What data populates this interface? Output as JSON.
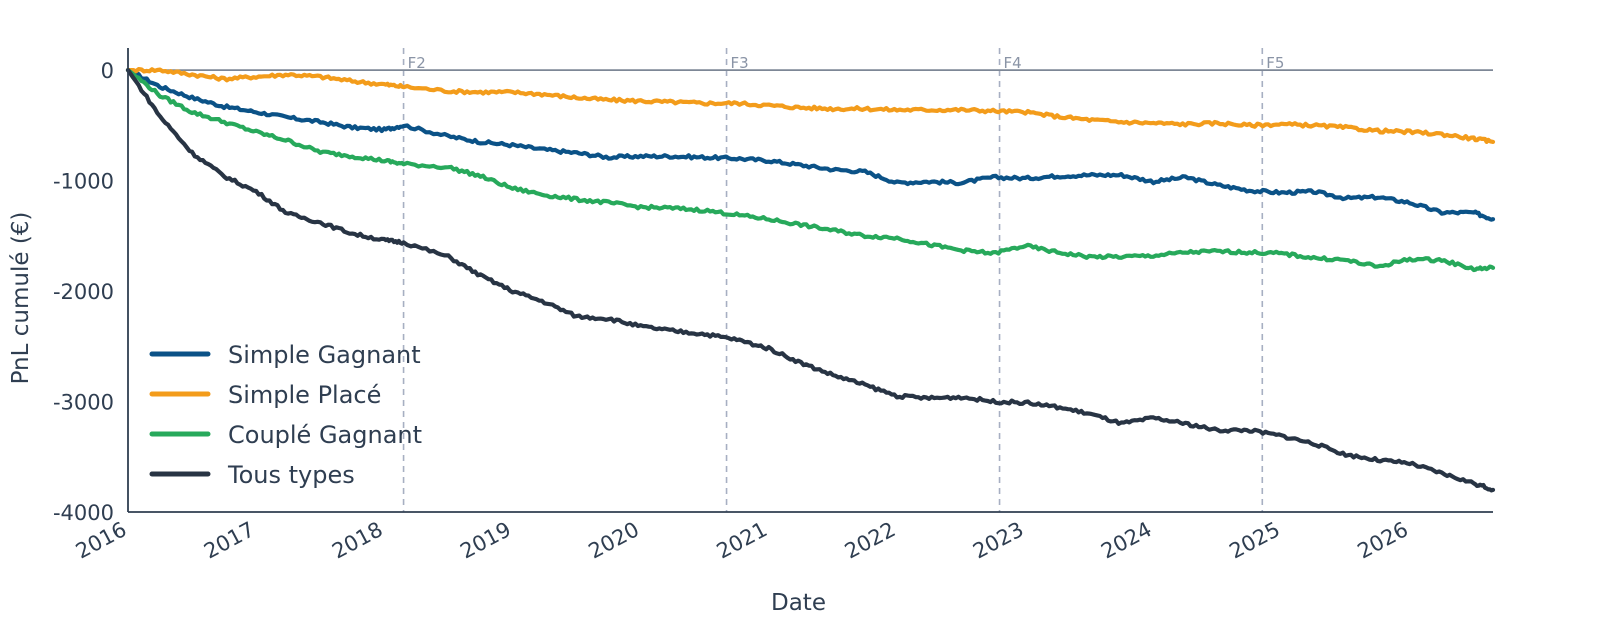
{
  "chart_data": {
    "type": "line",
    "title": "",
    "xlabel": "Date",
    "ylabel": "PnL cumulé (€)",
    "xlim": [
      2016.0,
      2026.65
    ],
    "ylim": [
      -4000,
      200
    ],
    "x_ticks": [
      "2016",
      "2017",
      "2018",
      "2019",
      "2020",
      "2021",
      "2022",
      "2023",
      "2024",
      "2025",
      "2026"
    ],
    "y_ticks": [
      0,
      -1000,
      -2000,
      -3000,
      -4000
    ],
    "y_tick_labels": [
      "0",
      "-1000",
      "-2000",
      "-3000",
      "-4000"
    ],
    "grid": false,
    "zero_line": true,
    "legend": "bottom-left",
    "vlines": [
      {
        "x": 2018.15,
        "label": "F2"
      },
      {
        "x": 2020.67,
        "label": "F3"
      },
      {
        "x": 2022.8,
        "label": "F4"
      },
      {
        "x": 2024.85,
        "label": "F5"
      }
    ],
    "x": [
      2016.0,
      2016.25,
      2016.5,
      2016.75,
      2017.0,
      2017.25,
      2017.5,
      2017.75,
      2018.0,
      2018.15,
      2018.5,
      2018.75,
      2019.0,
      2019.25,
      2019.5,
      2019.75,
      2020.0,
      2020.25,
      2020.5,
      2020.75,
      2021.0,
      2021.25,
      2021.5,
      2021.75,
      2022.0,
      2022.25,
      2022.5,
      2022.75,
      2023.0,
      2023.25,
      2023.5,
      2023.75,
      2024.0,
      2024.25,
      2024.5,
      2024.75,
      2025.0,
      2025.25,
      2025.5,
      2025.75,
      2026.0,
      2026.25,
      2026.5,
      2026.65
    ],
    "series": [
      {
        "name": "Simple Gagnant",
        "color": "#0b5287",
        "values": [
          0,
          -150,
          -250,
          -330,
          -380,
          -430,
          -470,
          -520,
          -540,
          -500,
          -600,
          -650,
          -680,
          -720,
          -750,
          -790,
          -780,
          -780,
          -790,
          -800,
          -820,
          -860,
          -900,
          -920,
          -1020,
          -1010,
          -1020,
          -970,
          -980,
          -960,
          -950,
          -950,
          -1010,
          -970,
          -1040,
          -1090,
          -1110,
          -1100,
          -1160,
          -1150,
          -1200,
          -1290,
          -1290,
          -1350
        ]
      },
      {
        "name": "Simple Placé",
        "color": "#f39c1b",
        "values": [
          0,
          0,
          -40,
          -80,
          -60,
          -40,
          -60,
          -100,
          -130,
          -150,
          -190,
          -200,
          -200,
          -220,
          -250,
          -270,
          -280,
          -290,
          -300,
          -300,
          -320,
          -340,
          -350,
          -350,
          -360,
          -360,
          -360,
          -370,
          -380,
          -420,
          -450,
          -470,
          -480,
          -490,
          -480,
          -500,
          -490,
          -500,
          -520,
          -550,
          -560,
          -580,
          -620,
          -650
        ]
      },
      {
        "name": "Couplé Gagnant",
        "color": "#27a95b",
        "values": [
          0,
          -230,
          -380,
          -470,
          -560,
          -640,
          -740,
          -780,
          -820,
          -850,
          -880,
          -960,
          -1070,
          -1130,
          -1170,
          -1200,
          -1240,
          -1250,
          -1270,
          -1310,
          -1350,
          -1400,
          -1450,
          -1500,
          -1520,
          -1580,
          -1630,
          -1660,
          -1590,
          -1650,
          -1690,
          -1690,
          -1680,
          -1650,
          -1640,
          -1650,
          -1660,
          -1700,
          -1720,
          -1780,
          -1710,
          -1720,
          -1800,
          -1790
        ]
      },
      {
        "name": "Tous types",
        "color": "#283444",
        "values": [
          0,
          -420,
          -750,
          -960,
          -1100,
          -1300,
          -1380,
          -1480,
          -1540,
          -1560,
          -1690,
          -1860,
          -2000,
          -2100,
          -2230,
          -2250,
          -2320,
          -2360,
          -2390,
          -2440,
          -2520,
          -2650,
          -2760,
          -2850,
          -2950,
          -2970,
          -2960,
          -3000,
          -3010,
          -3050,
          -3110,
          -3200,
          -3150,
          -3200,
          -3260,
          -3260,
          -3310,
          -3380,
          -3480,
          -3530,
          -3560,
          -3650,
          -3740,
          -3800
        ]
      }
    ]
  }
}
